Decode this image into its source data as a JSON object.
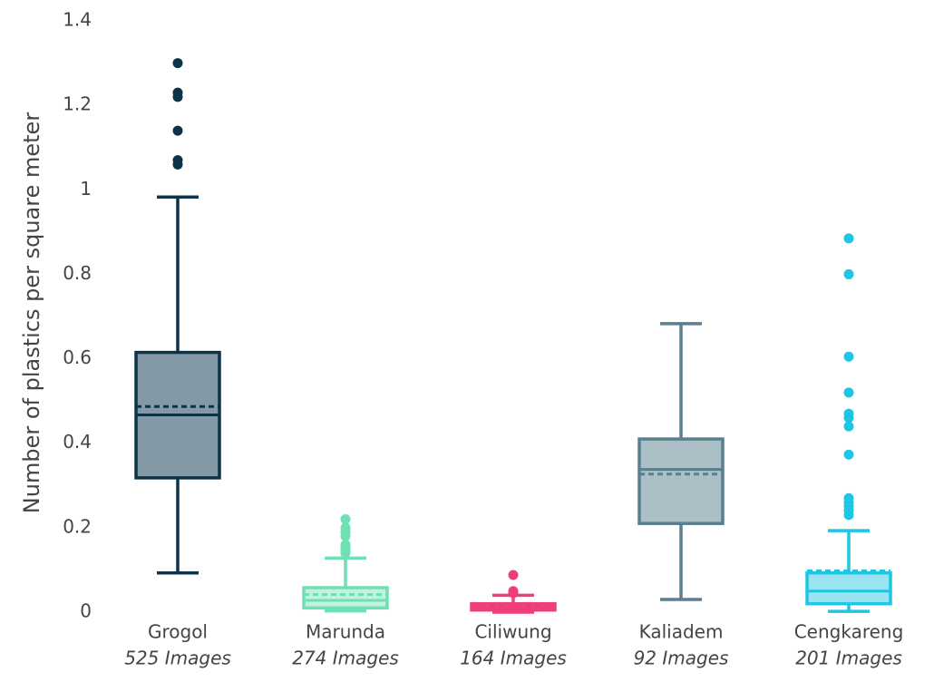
{
  "chart_data": {
    "type": "box",
    "ylabel": "Number of plastics per square meter",
    "ylim": [
      0,
      1.4
    ],
    "yticks": [
      "0",
      "0.2",
      "0.4",
      "0.6",
      "0.8",
      "1",
      "1.2",
      "1.4"
    ],
    "grid": false,
    "legend": "none",
    "series": [
      {
        "category": "Grogol",
        "subtitle": "525 Images",
        "color": "#0d3349",
        "fill": "#8499a6",
        "min": 0.093,
        "q1": 0.318,
        "median": 0.467,
        "mean": 0.487,
        "q3": 0.615,
        "max": 0.983,
        "outliers": [
          1.06,
          1.07,
          1.14,
          1.22,
          1.23,
          1.3
        ]
      },
      {
        "category": "Marunda",
        "subtitle": "274 Images",
        "color": "#6ee0b4",
        "fill": "#c2f1de",
        "min": 0.003,
        "q1": 0.01,
        "median": 0.028,
        "mean": 0.042,
        "q3": 0.058,
        "max": 0.128,
        "outliers": [
          0.14,
          0.145,
          0.15,
          0.155,
          0.16,
          0.18,
          0.19,
          0.2,
          0.22
        ]
      },
      {
        "category": "Ciliwung",
        "subtitle": "164 Images",
        "color": "#ee3e7c",
        "fill": "#f16a9b",
        "min": 0.0,
        "q1": 0.005,
        "median": 0.012,
        "mean": 0.015,
        "q3": 0.02,
        "max": 0.04,
        "outliers": [
          0.045,
          0.05,
          0.088
        ]
      },
      {
        "category": "Kaliadem",
        "subtitle": "92 Images",
        "color": "#5a7f8e",
        "fill": "#abbfc7",
        "min": 0.03,
        "q1": 0.21,
        "median": 0.338,
        "mean": 0.327,
        "q3": 0.41,
        "max": 0.683,
        "outliers": []
      },
      {
        "category": "Cengkareng",
        "subtitle": "201 Images",
        "color": "#1ec6e3",
        "fill": "#9ae3f1",
        "min": 0.002,
        "q1": 0.02,
        "median": 0.05,
        "mean": 0.098,
        "q3": 0.093,
        "max": 0.193,
        "outliers": [
          0.23,
          0.24,
          0.25,
          0.26,
          0.27,
          0.373,
          0.44,
          0.46,
          0.47,
          0.52,
          0.605,
          0.8,
          0.885
        ]
      }
    ]
  }
}
